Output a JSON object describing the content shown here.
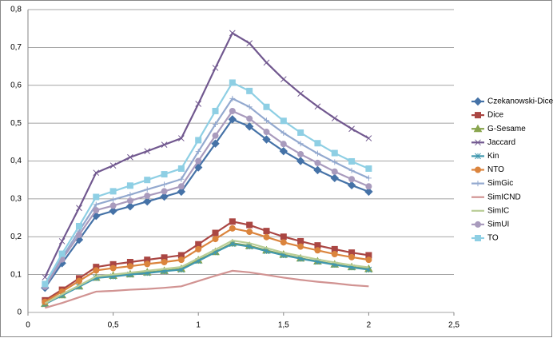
{
  "chart_data": {
    "type": "line",
    "x": [
      0.1,
      0.2,
      0.3,
      0.4,
      0.5,
      0.6,
      0.7,
      0.8,
      0.9,
      1.0,
      1.1,
      1.2,
      1.3,
      1.4,
      1.5,
      1.6,
      1.7,
      1.8,
      1.9,
      2.0
    ],
    "xlim": [
      0,
      2.5
    ],
    "xticks": [
      0,
      {
        "value": 0.5,
        "label": "0,5"
      },
      1,
      {
        "value": 1.5,
        "label": "1,5"
      },
      2,
      {
        "value": 2.5,
        "label": "2,5"
      }
    ],
    "ylim": [
      0,
      0.8
    ],
    "yticks": [
      0,
      {
        "value": 0.1,
        "label": "0,1"
      },
      {
        "value": 0.2,
        "label": "0,2"
      },
      {
        "value": 0.3,
        "label": "0,3"
      },
      {
        "value": 0.4,
        "label": "0,4"
      },
      {
        "value": 0.5,
        "label": "0,5"
      },
      {
        "value": 0.6,
        "label": "0,6"
      },
      {
        "value": 0.7,
        "label": "0,7"
      },
      {
        "value": 0.8,
        "label": "0,8"
      }
    ],
    "grid": true,
    "legend": "right",
    "series": [
      {
        "name": "Czekanowski-Dice",
        "color": "#4572a7",
        "marker": "diamond",
        "values": [
          0.065,
          0.13,
          0.192,
          0.255,
          0.268,
          0.28,
          0.293,
          0.306,
          0.319,
          0.383,
          0.446,
          0.51,
          0.491,
          0.457,
          0.426,
          0.4,
          0.376,
          0.355,
          0.336,
          0.319
        ]
      },
      {
        "name": "Dice",
        "color": "#aa4643",
        "marker": "square",
        "values": [
          0.032,
          0.06,
          0.09,
          0.12,
          0.127,
          0.133,
          0.139,
          0.145,
          0.151,
          0.18,
          0.21,
          0.24,
          0.231,
          0.215,
          0.2,
          0.188,
          0.177,
          0.167,
          0.158,
          0.151
        ]
      },
      {
        "name": "G-Sesame",
        "color": "#89a54e",
        "marker": "triangle",
        "values": [
          0.023,
          0.046,
          0.069,
          0.092,
          0.097,
          0.101,
          0.106,
          0.11,
          0.115,
          0.138,
          0.16,
          0.183,
          0.176,
          0.164,
          0.153,
          0.143,
          0.135,
          0.127,
          0.12,
          0.115
        ]
      },
      {
        "name": "Jaccard",
        "color": "#71588f",
        "marker": "x",
        "values": [
          0.093,
          0.188,
          0.276,
          0.369,
          0.388,
          0.41,
          0.426,
          0.443,
          0.46,
          0.551,
          0.646,
          0.738,
          0.711,
          0.66,
          0.616,
          0.578,
          0.544,
          0.513,
          0.485,
          0.46
        ]
      },
      {
        "name": "Kin",
        "color": "#4198af",
        "marker": "asterisk",
        "values": [
          0.022,
          0.045,
          0.068,
          0.091,
          0.095,
          0.1,
          0.104,
          0.109,
          0.113,
          0.136,
          0.159,
          0.181,
          0.174,
          0.162,
          0.151,
          0.142,
          0.134,
          0.126,
          0.119,
          0.113
        ]
      },
      {
        "name": "NTO",
        "color": "#db843d",
        "marker": "circle",
        "values": [
          0.028,
          0.055,
          0.083,
          0.111,
          0.117,
          0.122,
          0.128,
          0.133,
          0.139,
          0.167,
          0.194,
          0.222,
          0.213,
          0.199,
          0.185,
          0.174,
          0.164,
          0.154,
          0.146,
          0.139
        ]
      },
      {
        "name": "SimGic",
        "color": "#93a9cf",
        "marker": "plus",
        "values": [
          0.07,
          0.145,
          0.215,
          0.285,
          0.298,
          0.311,
          0.325,
          0.338,
          0.352,
          0.425,
          0.497,
          0.565,
          0.543,
          0.507,
          0.474,
          0.446,
          0.42,
          0.397,
          0.375,
          0.355
        ]
      },
      {
        "name": "SimICND",
        "color": "#d19392",
        "marker": "none",
        "values": [
          0.012,
          0.025,
          0.04,
          0.055,
          0.057,
          0.06,
          0.062,
          0.065,
          0.069,
          0.083,
          0.097,
          0.11,
          0.106,
          0.099,
          0.092,
          0.086,
          0.081,
          0.077,
          0.072,
          0.069
        ]
      },
      {
        "name": "SimIC",
        "color": "#b9cd96",
        "marker": "none",
        "values": [
          0.024,
          0.048,
          0.071,
          0.095,
          0.1,
          0.105,
          0.11,
          0.115,
          0.12,
          0.143,
          0.166,
          0.19,
          0.183,
          0.17,
          0.158,
          0.149,
          0.14,
          0.132,
          0.125,
          0.119
        ]
      },
      {
        "name": "SimUI",
        "color": "#a99bbd",
        "marker": "circle",
        "values": [
          0.068,
          0.14,
          0.205,
          0.27,
          0.282,
          0.295,
          0.308,
          0.32,
          0.333,
          0.4,
          0.467,
          0.532,
          0.512,
          0.477,
          0.445,
          0.418,
          0.395,
          0.372,
          0.352,
          0.333
        ]
      },
      {
        "name": "TO",
        "color": "#8ecfe4",
        "marker": "square",
        "values": [
          0.075,
          0.155,
          0.228,
          0.305,
          0.32,
          0.335,
          0.35,
          0.365,
          0.38,
          0.455,
          0.532,
          0.607,
          0.585,
          0.543,
          0.506,
          0.475,
          0.447,
          0.421,
          0.399,
          0.38
        ]
      }
    ]
  }
}
